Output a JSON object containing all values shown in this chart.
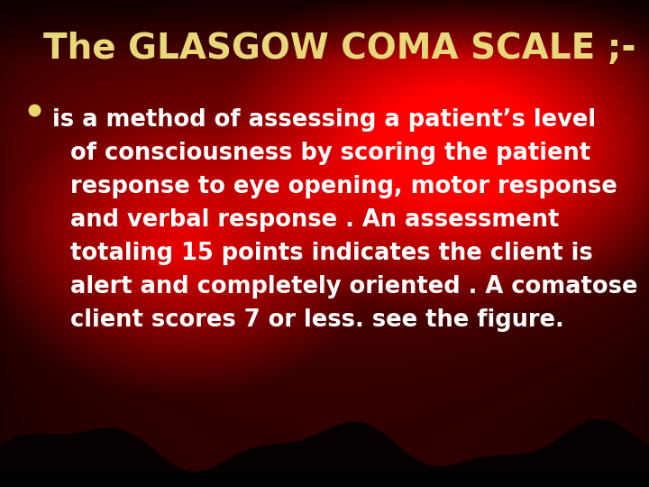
{
  "title": "The GLASGOW COMA SCALE ;-",
  "title_color": "#E8D87A",
  "title_fontsize": 28,
  "bullet_color": "#E8D870",
  "bullet_text_color": "#FFFFFF",
  "bullet_fontsize": 18.5,
  "body_lines": [
    "is a method of assessing a patient’s level",
    "of consciousness by scoring the patient",
    "response to eye opening, motor response",
    "and verbal response . An assessment",
    "totaling 15 points indicates the client is",
    "alert and completely oriented . A comatose",
    "client scores 7 or less. see the figure."
  ],
  "wave_color": "#080200"
}
